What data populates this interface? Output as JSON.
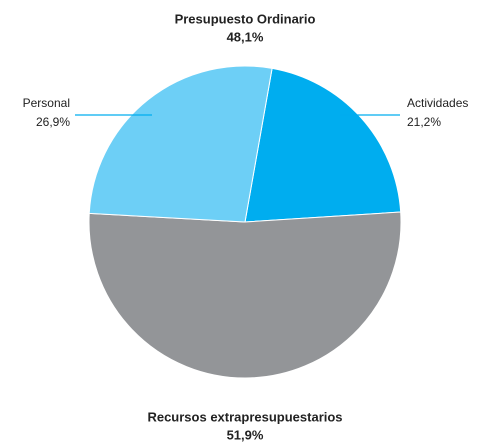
{
  "chart_data": {
    "type": "pie",
    "annotations": [
      {
        "text": "Presupuesto Ordinario"
      },
      {
        "text": "48,1%"
      }
    ],
    "categories": [
      "Actividades",
      "Recursos extrapresupuestarios",
      "Personal"
    ],
    "values": [
      21.2,
      51.9,
      26.9
    ],
    "value_labels": [
      "21,2%",
      "51,9%",
      "26,9%"
    ],
    "colors": [
      "#00adef",
      "#939598",
      "#6dcff6"
    ]
  }
}
